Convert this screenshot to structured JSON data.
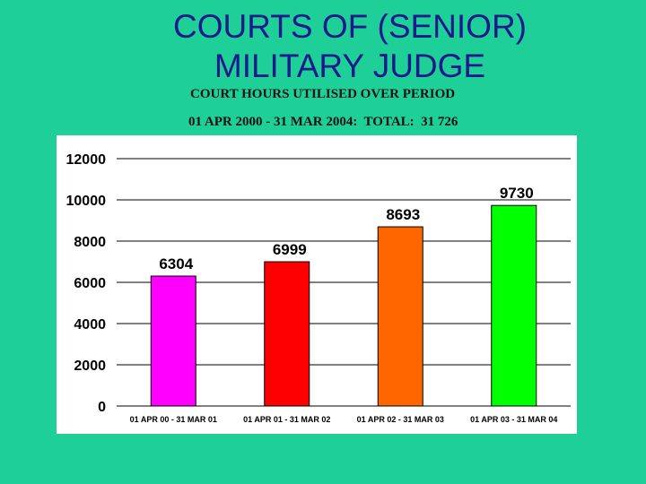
{
  "slide": {
    "title_line1": "COURTS OF (SENIOR)",
    "title_line2": "MILITARY JUDGE",
    "subtitle": "COURT HOURS UTILISED OVER PERIOD",
    "subtitle2": "01 APR 2000 - 31 MAR 2004:  TOTAL:  31 726"
  },
  "colors": {
    "background": "#1fcf98",
    "title": "#1a1a8c",
    "bars": [
      "#ff00ff",
      "#ff0000",
      "#ff6600",
      "#00ff00"
    ]
  },
  "chart_data": {
    "type": "bar",
    "categories": [
      "01 APR 00 - 31 MAR 01",
      "01 APR 01 - 31 MAR 02",
      "01 APR 02 - 31 MAR 03",
      "01 APR 03 - 31 MAR 04"
    ],
    "values": [
      6304,
      6999,
      8693,
      9730
    ],
    "ylim": [
      0,
      12000
    ],
    "yticks": [
      0,
      2000,
      4000,
      6000,
      8000,
      10000,
      12000
    ],
    "grid": true,
    "title": "",
    "xlabel": "",
    "ylabel": ""
  }
}
